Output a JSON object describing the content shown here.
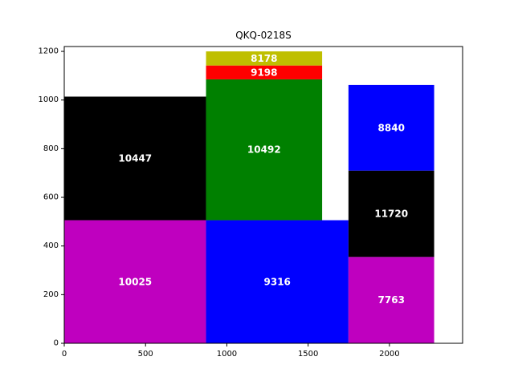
{
  "chart_data": {
    "type": "treemap",
    "title": "QKQ-0218S",
    "xlim": [
      0,
      2450
    ],
    "ylim": [
      0,
      1220
    ],
    "x_ticks": [
      0,
      500,
      1000,
      1500,
      2000
    ],
    "y_ticks": [
      0,
      200,
      400,
      600,
      800,
      1000,
      1200
    ],
    "grid": false,
    "rects": [
      {
        "label": "10025",
        "value": 10025,
        "x0": 0,
        "x1": 872,
        "y0": 0,
        "y1": 506,
        "color": "#bf00bf"
      },
      {
        "label": "10447",
        "value": 10447,
        "x0": 0,
        "x1": 872,
        "y0": 506,
        "y1": 1014,
        "color": "#000000"
      },
      {
        "label": "9316",
        "value": 9316,
        "x0": 872,
        "x1": 1748,
        "y0": 0,
        "y1": 506,
        "color": "#0000ff"
      },
      {
        "label": "10492",
        "value": 10492,
        "x0": 872,
        "x1": 1586,
        "y0": 506,
        "y1": 1085,
        "color": "#008000"
      },
      {
        "label": "9198",
        "value": 9198,
        "x0": 872,
        "x1": 1586,
        "y0": 1085,
        "y1": 1142,
        "color": "#ff0000"
      },
      {
        "label": "8178",
        "value": 8178,
        "x0": 872,
        "x1": 1586,
        "y0": 1142,
        "y1": 1200,
        "color": "#bfbf00"
      },
      {
        "label": "7763",
        "value": 7763,
        "x0": 1748,
        "x1": 2275,
        "y0": 0,
        "y1": 355,
        "color": "#bf00bf"
      },
      {
        "label": "11720",
        "value": 11720,
        "x0": 1748,
        "x1": 2275,
        "y0": 355,
        "y1": 710,
        "color": "#000000"
      },
      {
        "label": "8840",
        "value": 8840,
        "x0": 1748,
        "x1": 2275,
        "y0": 710,
        "y1": 1062,
        "color": "#0000ff"
      }
    ]
  }
}
